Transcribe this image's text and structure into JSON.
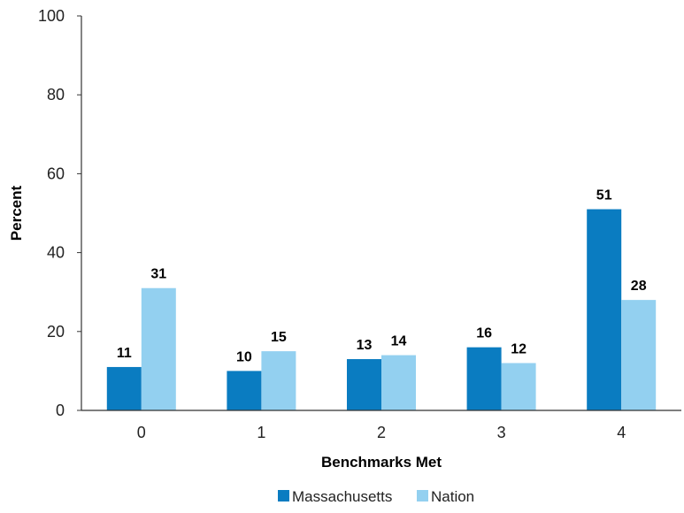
{
  "chart_data": {
    "type": "bar",
    "title": "",
    "xlabel": "Benchmarks Met",
    "ylabel": "Percent",
    "categories": [
      "0",
      "1",
      "2",
      "3",
      "4"
    ],
    "series": [
      {
        "name": "Massachusetts",
        "values": [
          11,
          10,
          13,
          16,
          51
        ],
        "color": "#0a7cc1"
      },
      {
        "name": "Nation",
        "values": [
          31,
          15,
          14,
          12,
          28
        ],
        "color": "#93d0f0"
      }
    ],
    "ylim": [
      0,
      100
    ],
    "yticks": [
      0,
      20,
      40,
      60,
      80,
      100
    ],
    "grid": false,
    "legend": "bottom-center",
    "data_labels": true
  }
}
